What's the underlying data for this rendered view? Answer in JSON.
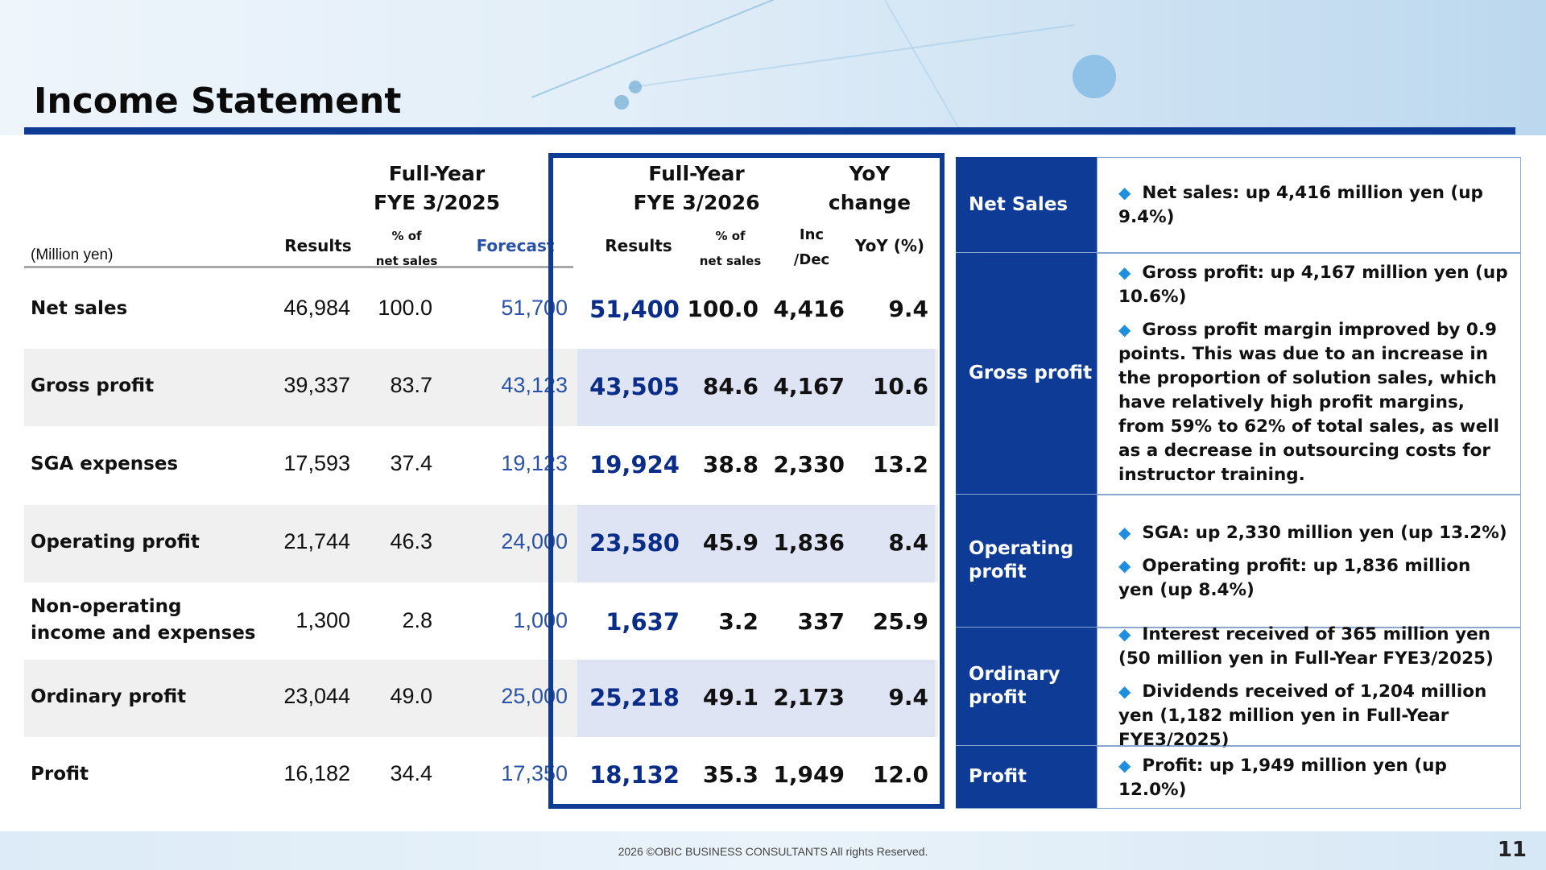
{
  "page": {
    "title": "Income Statement",
    "copyright": "2026 ©OBIC BUSINESS CONSULTANTS All rights Reserved.",
    "page_number": "11"
  },
  "table": {
    "unit": "(Million yen)",
    "groups": {
      "fy2025_line1": "Full-Year",
      "fy2025_line2": "FYE 3/2025",
      "fy2026_line1": "Full-Year",
      "fy2026_line2": "FYE 3/2026",
      "yoy_line1": "YoY",
      "yoy_line2": "change"
    },
    "columns": {
      "results": "Results",
      "pct_line1": "% of",
      "pct_line2": "net sales",
      "forecast": "Forecast",
      "results2": "Results",
      "pct2_line1": "% of",
      "pct2_line2": "net sales",
      "incdec_line1": "Inc",
      "incdec_line2": "/Dec",
      "yoy_pct": "YoY (%)"
    },
    "rows": [
      {
        "label": "Net sales",
        "label2": "",
        "r25": "46,984",
        "p25": "100.0",
        "fc": "51,700",
        "r26": "51,400",
        "p26": "100.0",
        "inc": "4,416",
        "yoy": "9.4"
      },
      {
        "label": "Gross profit",
        "label2": "",
        "r25": "39,337",
        "p25": "83.7",
        "fc": "43,123",
        "r26": "43,505",
        "p26": "84.6",
        "inc": "4,167",
        "yoy": "10.6"
      },
      {
        "label": "SGA expenses",
        "label2": "",
        "r25": "17,593",
        "p25": "37.4",
        "fc": "19,123",
        "r26": "19,924",
        "p26": "38.8",
        "inc": "2,330",
        "yoy": "13.2"
      },
      {
        "label": "Operating profit",
        "label2": "",
        "r25": "21,744",
        "p25": "46.3",
        "fc": "24,000",
        "r26": "23,580",
        "p26": "45.9",
        "inc": "1,836",
        "yoy": "8.4"
      },
      {
        "label": "Non-operating",
        "label2": "income and expenses",
        "r25": "1,300",
        "p25": "2.8",
        "fc": "1,000",
        "r26": "1,637",
        "p26": "3.2",
        "inc": "337",
        "yoy": "25.9"
      },
      {
        "label": "Ordinary profit",
        "label2": "",
        "r25": "23,044",
        "p25": "49.0",
        "fc": "25,000",
        "r26": "25,218",
        "p26": "49.1",
        "inc": "2,173",
        "yoy": "9.4"
      },
      {
        "label": "Profit",
        "label2": "",
        "r25": "16,182",
        "p25": "34.4",
        "fc": "17,350",
        "r26": "18,132",
        "p26": "35.3",
        "inc": "1,949",
        "yoy": "12.0"
      }
    ]
  },
  "side": {
    "bullet_icon": "diamond-icon",
    "accent_color": "#0e3b96",
    "bullet_color": "#1e8fe0",
    "sections": [
      {
        "label_line1": "Net Sales",
        "label_line2": "",
        "bullets": [
          "Net sales: up  4,416 million yen (up 9.4%)"
        ]
      },
      {
        "label_line1": "Gross profit",
        "label_line2": "",
        "bullets": [
          "Gross profit: up 4,167 million yen (up 10.6%)",
          "Gross profit margin improved by 0.9 points. This was due to an increase in the proportion of solution sales, which have relatively high profit margins, from 59% to 62% of total sales, as well as a decrease in outsourcing costs for instructor training."
        ]
      },
      {
        "label_line1": "Operating",
        "label_line2": "profit",
        "bullets": [
          "SGA: up 2,330 million yen (up 13.2%)",
          "Operating profit: up 1,836 million yen (up 8.4%)"
        ]
      },
      {
        "label_line1": "Ordinary",
        "label_line2": "profit",
        "bullets": [
          "Interest received of 365 million yen (50 million yen in Full-Year FYE3/2025)",
          "Dividends received of 1,204 million yen (1,182 million yen in Full-Year FYE3/2025)"
        ]
      },
      {
        "label_line1": "Profit",
        "label_line2": "",
        "bullets": [
          "Profit: up 1,949 million yen (up 12.0%)"
        ]
      }
    ]
  }
}
